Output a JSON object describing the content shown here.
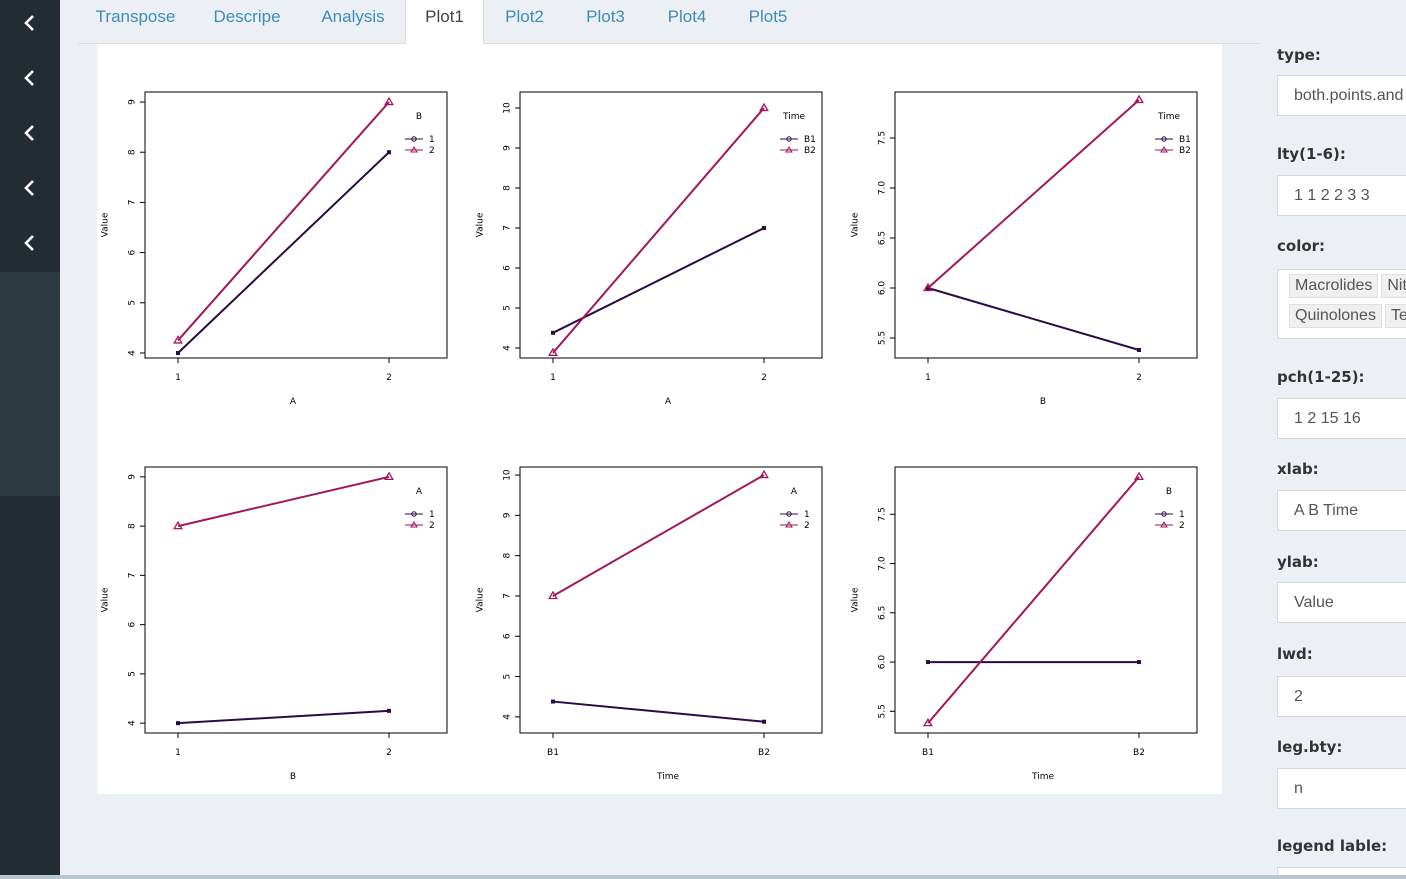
{
  "tabs": [
    {
      "label": "Transpose",
      "active": false
    },
    {
      "label": "Descripe",
      "active": false
    },
    {
      "label": "Analysis",
      "active": false
    },
    {
      "label": "Plot1",
      "active": true
    },
    {
      "label": "Plot2",
      "active": false
    },
    {
      "label": "Plot3",
      "active": false
    },
    {
      "label": "Plot4",
      "active": false
    },
    {
      "label": "Plot5",
      "active": false
    }
  ],
  "sidebar": {
    "icons": [
      "chevron-left-icon",
      "chevron-left-icon",
      "chevron-left-icon",
      "chevron-left-icon",
      "chevron-left-icon"
    ]
  },
  "params": {
    "type_label": "type:",
    "type_value": "both.points.and",
    "lty_label": "lty(1-6):",
    "lty_value": "1 1 2 2 3 3",
    "color_label": "color:",
    "color_tags": [
      [
        "Macrolides",
        "Nit"
      ],
      [
        "Quinolones",
        "Te"
      ]
    ],
    "pch_label": "pch(1-25):",
    "pch_value": "1 2 15 16",
    "xlab_label": "xlab:",
    "xlab_value": "A B Time",
    "ylab_label": "ylab:",
    "ylab_value": "Value",
    "lwd_label": "lwd:",
    "lwd_value": "2",
    "legbty_label": "leg.bty:",
    "legbty_value": "n",
    "legend_label": "legend lable:"
  },
  "colors": {
    "series1": "#2b0a45",
    "series2": "#a3155c",
    "accent": "#3c8dbc",
    "sidebar": "#222d32"
  },
  "chart_data": [
    {
      "type": "line",
      "xlabel": "A",
      "ylabel": "Value",
      "categories": [
        "1",
        "2"
      ],
      "ylim": [
        3.9,
        9.2
      ],
      "yticks": [
        4,
        5,
        6,
        7,
        8,
        9
      ],
      "legend_title": "B",
      "legend_position": "top-right",
      "series": [
        {
          "name": "1",
          "values": [
            4.0,
            8.0
          ]
        },
        {
          "name": "2",
          "values": [
            4.25,
            9.0
          ]
        }
      ]
    },
    {
      "type": "line",
      "xlabel": "A",
      "ylabel": "Value",
      "categories": [
        "1",
        "2"
      ],
      "ylim": [
        3.75,
        10.4
      ],
      "yticks": [
        4,
        5,
        6,
        7,
        8,
        9,
        10
      ],
      "legend_title": "Time",
      "legend_position": "top-right",
      "series": [
        {
          "name": "B1",
          "values": [
            4.38,
            7.0
          ]
        },
        {
          "name": "B2",
          "values": [
            3.88,
            10.0
          ]
        }
      ]
    },
    {
      "type": "line",
      "xlabel": "B",
      "ylabel": "Value",
      "categories": [
        "1",
        "2"
      ],
      "ylim": [
        5.3,
        7.96
      ],
      "yticks": [
        5.5,
        6.0,
        6.5,
        7.0,
        7.5
      ],
      "legend_title": "Time",
      "legend_position": "top-right",
      "series": [
        {
          "name": "B1",
          "values": [
            6.0,
            5.38
          ]
        },
        {
          "name": "B2",
          "values": [
            6.0,
            7.88
          ]
        }
      ]
    },
    {
      "type": "line",
      "xlabel": "B",
      "ylabel": "Value",
      "categories": [
        "1",
        "2"
      ],
      "ylim": [
        3.8,
        9.2
      ],
      "yticks": [
        4,
        5,
        6,
        7,
        8,
        9
      ],
      "legend_title": "A",
      "legend_position": "top-right",
      "series": [
        {
          "name": "1",
          "values": [
            4.0,
            4.25
          ]
        },
        {
          "name": "2",
          "values": [
            8.0,
            9.0
          ]
        }
      ]
    },
    {
      "type": "line",
      "xlabel": "Time",
      "ylabel": "Value",
      "categories": [
        "B1",
        "B2"
      ],
      "ylim": [
        3.6,
        10.2
      ],
      "yticks": [
        4,
        5,
        6,
        7,
        8,
        9,
        10
      ],
      "legend_title": "A",
      "legend_position": "top-right",
      "series": [
        {
          "name": "1",
          "values": [
            4.38,
            3.88
          ]
        },
        {
          "name": "2",
          "values": [
            7.0,
            10.0
          ]
        }
      ]
    },
    {
      "type": "line",
      "xlabel": "Time",
      "ylabel": "Value",
      "categories": [
        "B1",
        "B2"
      ],
      "ylim": [
        5.28,
        7.98
      ],
      "yticks": [
        5.5,
        6.0,
        6.5,
        7.0,
        7.5
      ],
      "legend_title": "B",
      "legend_position": "top-right",
      "series": [
        {
          "name": "1",
          "values": [
            6.0,
            6.0
          ]
        },
        {
          "name": "2",
          "values": [
            5.38,
            7.88
          ]
        }
      ]
    }
  ]
}
